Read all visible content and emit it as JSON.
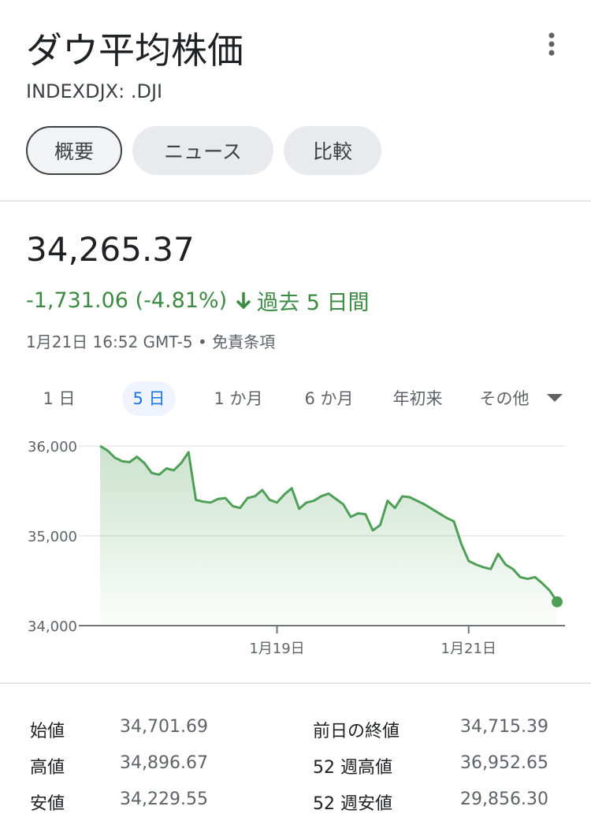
{
  "header": {
    "title": "ダウ平均株価",
    "ticker": "INDEXDJX: .DJI",
    "tabs": [
      "概要",
      "ニュース",
      "比較"
    ]
  },
  "quote": {
    "price": "34,265.37",
    "change": "-1,731.06 (-4.81%)",
    "period": "過去 5 日間",
    "timestamp": "1月21日 16:52 GMT-5 • 免責条項"
  },
  "ranges": [
    "1 日",
    "5 日",
    "1 か月",
    "6 か月",
    "年初来",
    "その他"
  ],
  "chart_data": {
    "type": "line",
    "color": "#4f9f58",
    "categories": [
      null,
      null,
      null,
      null,
      null,
      null,
      null,
      null,
      null,
      null,
      null,
      null,
      null,
      null,
      null,
      null,
      null,
      null,
      null,
      null,
      null,
      null,
      null,
      null,
      "1月19日",
      null,
      null,
      null,
      null,
      null,
      null,
      null,
      null,
      null,
      null,
      null,
      null,
      null,
      null,
      null,
      null,
      null,
      null,
      null,
      null,
      null,
      null,
      null,
      null,
      null,
      "1月21日",
      null,
      null,
      null,
      null,
      null,
      null,
      null,
      null,
      null,
      null,
      null,
      null
    ],
    "values": [
      36000,
      35950,
      35870,
      35830,
      35820,
      35880,
      35810,
      35700,
      35680,
      35750,
      35730,
      35810,
      35930,
      35400,
      35380,
      35370,
      35410,
      35420,
      35330,
      35310,
      35420,
      35440,
      35510,
      35400,
      35370,
      35460,
      35530,
      35300,
      35370,
      35390,
      35440,
      35470,
      35410,
      35350,
      35210,
      35250,
      35240,
      35060,
      35120,
      35390,
      35310,
      35440,
      35430,
      35390,
      35350,
      35300,
      35250,
      35200,
      35160,
      34910,
      34720,
      34680,
      34650,
      34630,
      34800,
      34680,
      34630,
      34540,
      34520,
      34540,
      34470,
      34390,
      34265
    ],
    "ylim": [
      34000,
      36000
    ],
    "yticks": [
      {
        "value": 34000,
        "label": "34,000"
      },
      {
        "value": 35000,
        "label": "35,000"
      },
      {
        "value": 36000,
        "label": "36,000"
      }
    ],
    "grid": true
  },
  "stats": {
    "rows": [
      [
        "始値",
        "34,701.69",
        "前日の終値",
        "34,715.39"
      ],
      [
        "高値",
        "34,896.67",
        "52 週高値",
        "36,952.65"
      ],
      [
        "安値",
        "34,229.55",
        "52 週安値",
        "29,856.30"
      ]
    ]
  }
}
